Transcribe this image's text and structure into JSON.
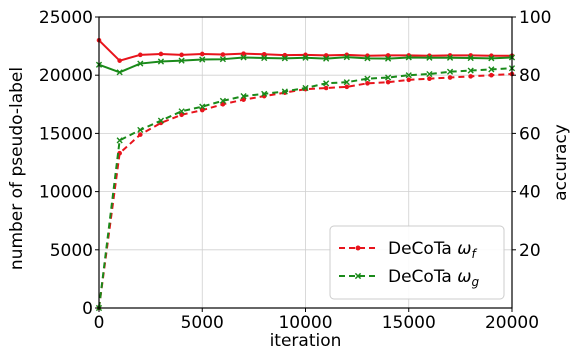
{
  "chart_data": {
    "type": "line",
    "xlabel": "iteration",
    "ylabel_left": "number of pseudo-label",
    "ylabel_right": "accuracy",
    "xlim": [
      0,
      20000
    ],
    "ylim_left": [
      0,
      25000
    ],
    "ylim_right": [
      0,
      100
    ],
    "x_ticks": [
      "0",
      "5000",
      "10000",
      "15000",
      "20000"
    ],
    "y_ticks_left": [
      "0",
      "5000",
      "10000",
      "15000",
      "20000",
      "25000"
    ],
    "y_ticks_right": [
      "20",
      "40",
      "60",
      "80",
      "100"
    ],
    "grid": true,
    "legend_position": "lower-right",
    "legend": {
      "f": {
        "text": "DeCoTa ",
        "sym": "ω",
        "sub": "f"
      },
      "g": {
        "text": "DeCoTa ",
        "sym": "ω",
        "sub": "g"
      }
    },
    "x": [
      0,
      1000,
      2000,
      3000,
      4000,
      5000,
      6000,
      7000,
      8000,
      9000,
      10000,
      11000,
      12000,
      13000,
      14000,
      15000,
      16000,
      17000,
      18000,
      19000,
      20000
    ],
    "series": [
      {
        "id": "pseudo_f",
        "axis": "left",
        "style": "dashed",
        "color": "#e8141c",
        "marker": "dot",
        "values": [
          0,
          13300,
          14900,
          15900,
          16600,
          17000,
          17500,
          17900,
          18200,
          18500,
          18800,
          18900,
          19000,
          19300,
          19400,
          19600,
          19700,
          19800,
          19900,
          20000,
          20100
        ]
      },
      {
        "id": "pseudo_g",
        "axis": "left",
        "style": "dashed",
        "color": "#1a8a1a",
        "marker": "x",
        "values": [
          0,
          14400,
          15300,
          16100,
          16900,
          17300,
          17800,
          18200,
          18400,
          18600,
          18900,
          19300,
          19400,
          19700,
          19800,
          20000,
          20100,
          20300,
          20400,
          20500,
          20600
        ]
      },
      {
        "id": "acc_f",
        "axis": "right",
        "style": "solid",
        "color": "#e8141c",
        "marker": "dot",
        "values": [
          92,
          85,
          87,
          87.3,
          87,
          87.3,
          87.1,
          87.4,
          87.2,
          86.9,
          87,
          86.8,
          87,
          86.7,
          86.8,
          86.8,
          86.7,
          86.8,
          86.8,
          86.7,
          86.7
        ]
      },
      {
        "id": "acc_g",
        "axis": "right",
        "style": "solid",
        "color": "#1a8a1a",
        "marker": "x",
        "values": [
          83.6,
          81,
          84,
          84.7,
          85,
          85.4,
          85.5,
          86.1,
          85.9,
          85.8,
          86,
          85.7,
          86.2,
          85.8,
          85.7,
          86.1,
          86,
          86,
          85.9,
          85.8,
          86.1
        ]
      }
    ]
  }
}
